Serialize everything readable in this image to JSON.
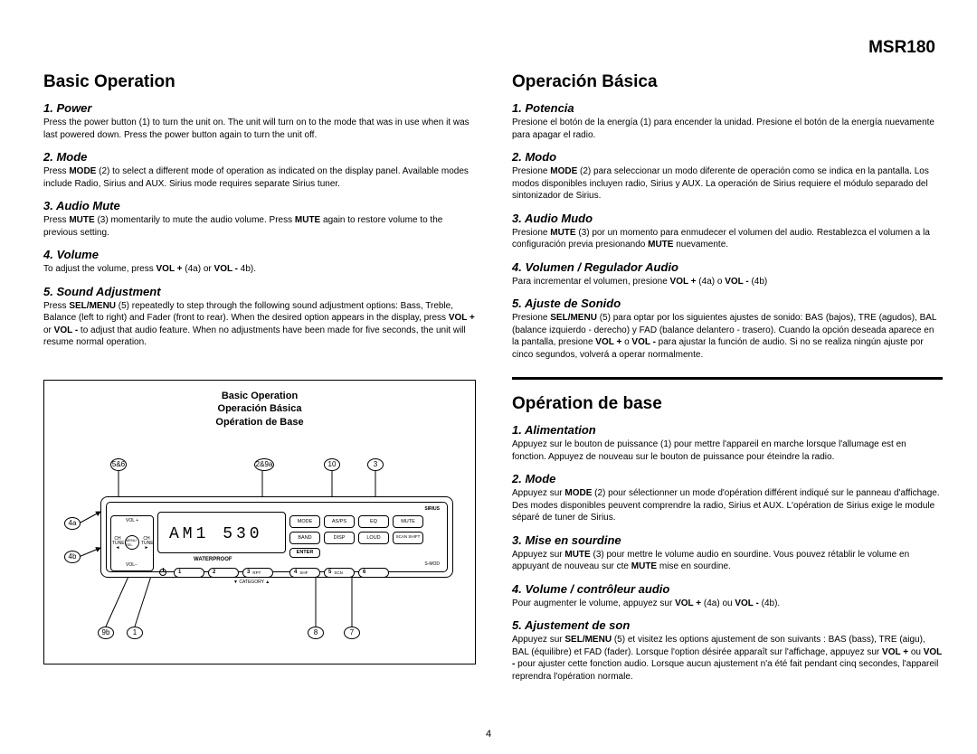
{
  "model": "MSR180",
  "page_number": "4",
  "diagram_header": {
    "line1": "Basic Operation",
    "line2": "Operación Básica",
    "line3": "Opération de Base"
  },
  "display": {
    "text": "AM1  530"
  },
  "device_labels": {
    "waterproof": "WATERPROOF",
    "sirius": "SIRIUS",
    "smod": "S-MOD",
    "category": "▼  CATEGORY  ▲"
  },
  "rocker": {
    "center": "MENU SEL",
    "vol_up": "VOL +",
    "vol_down": "VOL−",
    "ch_tune_left": "CH TUNE ◄",
    "ch_tune_right": "CH TUNE ►"
  },
  "buttons": {
    "mode": "MODE",
    "asps": "AS/PS",
    "eq": "EQ",
    "mute": "MUTE",
    "band": "BAND",
    "disp": "DISP",
    "loud": "LOUD",
    "scan": "SCAN SHIFT",
    "enter": "ENTER",
    "p1": "1",
    "p2": "2",
    "p3": "3",
    "p3sub": "RPT",
    "p4": "4",
    "p4sub": "SHF",
    "p5": "5",
    "p5sub": "SCN",
    "p6": "6"
  },
  "callouts": {
    "c56": "5&6",
    "c29a": "2&9a",
    "c10": "10",
    "c3": "3",
    "c4a": "4a",
    "c4b": "4b",
    "c9b": "9b",
    "c1": "1",
    "c8": "8",
    "c7": "7"
  },
  "left_col": {
    "title": "Basic Operation",
    "sections": [
      {
        "heading": "1. Power",
        "body": "Press the power button (1) to turn the unit on. The unit will turn on to the mode that was in use when it was last powered down. Press the power button again to turn the unit off."
      },
      {
        "heading": "2. Mode",
        "body": "Press <b>MODE</b> (2) to select a different mode of operation as indicated on the display panel. Available modes include Radio, Sirius and AUX. Sirius mode requires separate Sirius tuner."
      },
      {
        "heading": "3. Audio Mute",
        "body": "Press <b>MUTE</b> (3) momentarily to mute the audio volume. Press <b>MUTE</b> again to restore volume to the previous setting."
      },
      {
        "heading": "4. Volume",
        "body": "To adjust the volume, press <b>VOL +</b> (4a) or <b>VOL -</b> 4b)."
      },
      {
        "heading": "5. Sound Adjustment",
        "body": "Press <b>SEL/MENU</b> (5) repeatedly to step through the following sound adjustment options: Bass, Treble, Balance (left to right) and Fader (front to rear). When the desired option appears in the display, press <b>VOL +</b> or <b>VOL -</b> to adjust that audio feature. When no adjustments have been made for five seconds, the unit will resume normal operation."
      }
    ]
  },
  "right_col_a": {
    "title": "Operación Básica",
    "sections": [
      {
        "heading": "1. Potencia",
        "body": "Presione el botón de la energía (1) para encender la unidad. Presione el botón de la energía nuevamente para apagar el radio."
      },
      {
        "heading": "2. Modo",
        "body": "Presione <b>MODE</b> (2) para seleccionar un modo diferente de operación como se indica en la pantalla. Los modos disponibles incluyen radio, Sirius y AUX. La operación de Sirius requiere el módulo separado del sintonizador de Sirius."
      },
      {
        "heading": "3. Audio Mudo",
        "body": "Presione <b>MUTE</b> (3) por un momento para enmudecer el volumen del audio. Restablezca el volumen a la configuración previa presionando <b>MUTE</b> nuevamente."
      },
      {
        "heading": "4. Volumen / Regulador Audio",
        "body": "Para incrementar el volumen, presione <b>VOL +</b> (4a) o <b>VOL -</b> (4b)"
      },
      {
        "heading": "5. Ajuste de Sonido",
        "body": "Presione <b>SEL/MENU</b> (5) para optar por los siguientes ajustes de sonido: BAS (bajos), TRE (agudos), BAL (balance izquierdo - derecho) y FAD (balance delantero - trasero). Cuando la opción deseada aparece en la pantalla, presione <b>VOL +</b> o <b>VOL -</b> para ajustar la función de audio. Si no se realiza ningún ajuste por cinco segundos, volverá a operar normalmente."
      }
    ]
  },
  "right_col_b": {
    "title": "Opération de base",
    "sections": [
      {
        "heading": "1. Alimentation",
        "body": "Appuyez sur le bouton de puissance (1) pour mettre l'appareil en marche lorsque l'allumage est en fonction. Appuyez de nouveau sur le bouton de puissance pour éteindre la radio."
      },
      {
        "heading": "2. Mode",
        "body": "Appuyez sur <b>MODE</b> (2) pour sélectionner un mode d'opération différent indiqué sur le panneau d'affichage. Des modes disponibles peuvent comprendre la radio, Sirius et AUX. L'opération de Sirius exige le module séparé de tuner de Sirius."
      },
      {
        "heading": "3. Mise en sourdine",
        "body": "Appuyez sur <b>MUTE</b> (3) pour mettre le volume audio en sourdine. Vous pouvez rétablir le volume en appuyant de nouveau sur cte <b>MUTE</b> mise en sourdine."
      },
      {
        "heading": "4. Volume / contrôleur audio",
        "body": "Pour augmenter le volume, appuyez sur <b>VOL +</b> (4a) ou <b>VOL -</b> (4b)."
      },
      {
        "heading": "5. Ajustement de son",
        "body": "Appuyez sur <b>SEL/MENU</b> (5) et visitez les options ajustement de son suivants : BAS (bass), TRE (aigu), BAL (équilibre) et FAD (fader). Lorsque l'option désirée apparaît sur l'affichage, appuyez sur <b>VOL +</b> ou <b>VOL -</b> pour ajuster cette fonction audio. Lorsque aucun ajustement n'a été fait pendant cinq secondes, l'appareil reprendra l'opération normale."
      }
    ]
  }
}
